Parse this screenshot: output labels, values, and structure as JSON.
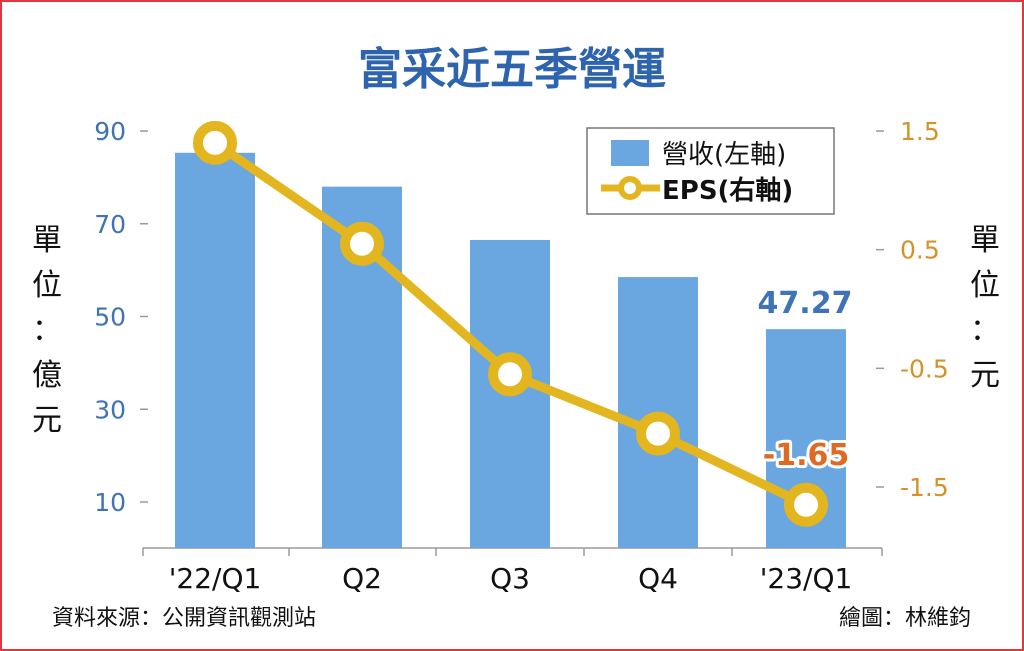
{
  "chart_data": {
    "type": "bar+line",
    "title": "富采近五季營運",
    "categories": [
      "'22/Q1",
      "Q2",
      "Q3",
      "Q4",
      "'23/Q1"
    ],
    "series": [
      {
        "name": "營收(左軸)",
        "type": "bar",
        "axis": "left",
        "values": [
          85.3,
          78.0,
          66.5,
          58.5,
          47.27
        ],
        "color": "#6aa7e0"
      },
      {
        "name": "EPS(右軸)",
        "type": "line",
        "axis": "right",
        "values": [
          1.4,
          0.55,
          -0.55,
          -1.05,
          -1.65
        ],
        "color": "#e3b51f"
      }
    ],
    "left_axis": {
      "label": "單位：億元",
      "ticks": [
        "90",
        "70",
        "50",
        "30",
        "10"
      ],
      "range": [
        0,
        90
      ],
      "color": "#3f73b5"
    },
    "right_axis": {
      "label": "單位：元",
      "ticks": [
        "1.5",
        "0.5",
        "-0.5",
        "-1.5"
      ],
      "range": [
        -2.0,
        1.5
      ],
      "color": "#d4932a"
    },
    "data_labels": {
      "bar_last": "47.27",
      "eps_last": "-1.65"
    },
    "legend": {
      "position": "top-right",
      "entries": [
        "營收(左軸)",
        "EPS(右軸)"
      ]
    },
    "grid": false,
    "source": "資料來源：公開資訊觀測站",
    "credit": "繪圖：林維鈞",
    "colors": {
      "title": "#2e63ae",
      "frame": "#e0383e",
      "bar": "#6aa7e0",
      "line": "#e3b51f",
      "label_blue": "#3f73b5",
      "label_orange": "#e06a22"
    }
  }
}
